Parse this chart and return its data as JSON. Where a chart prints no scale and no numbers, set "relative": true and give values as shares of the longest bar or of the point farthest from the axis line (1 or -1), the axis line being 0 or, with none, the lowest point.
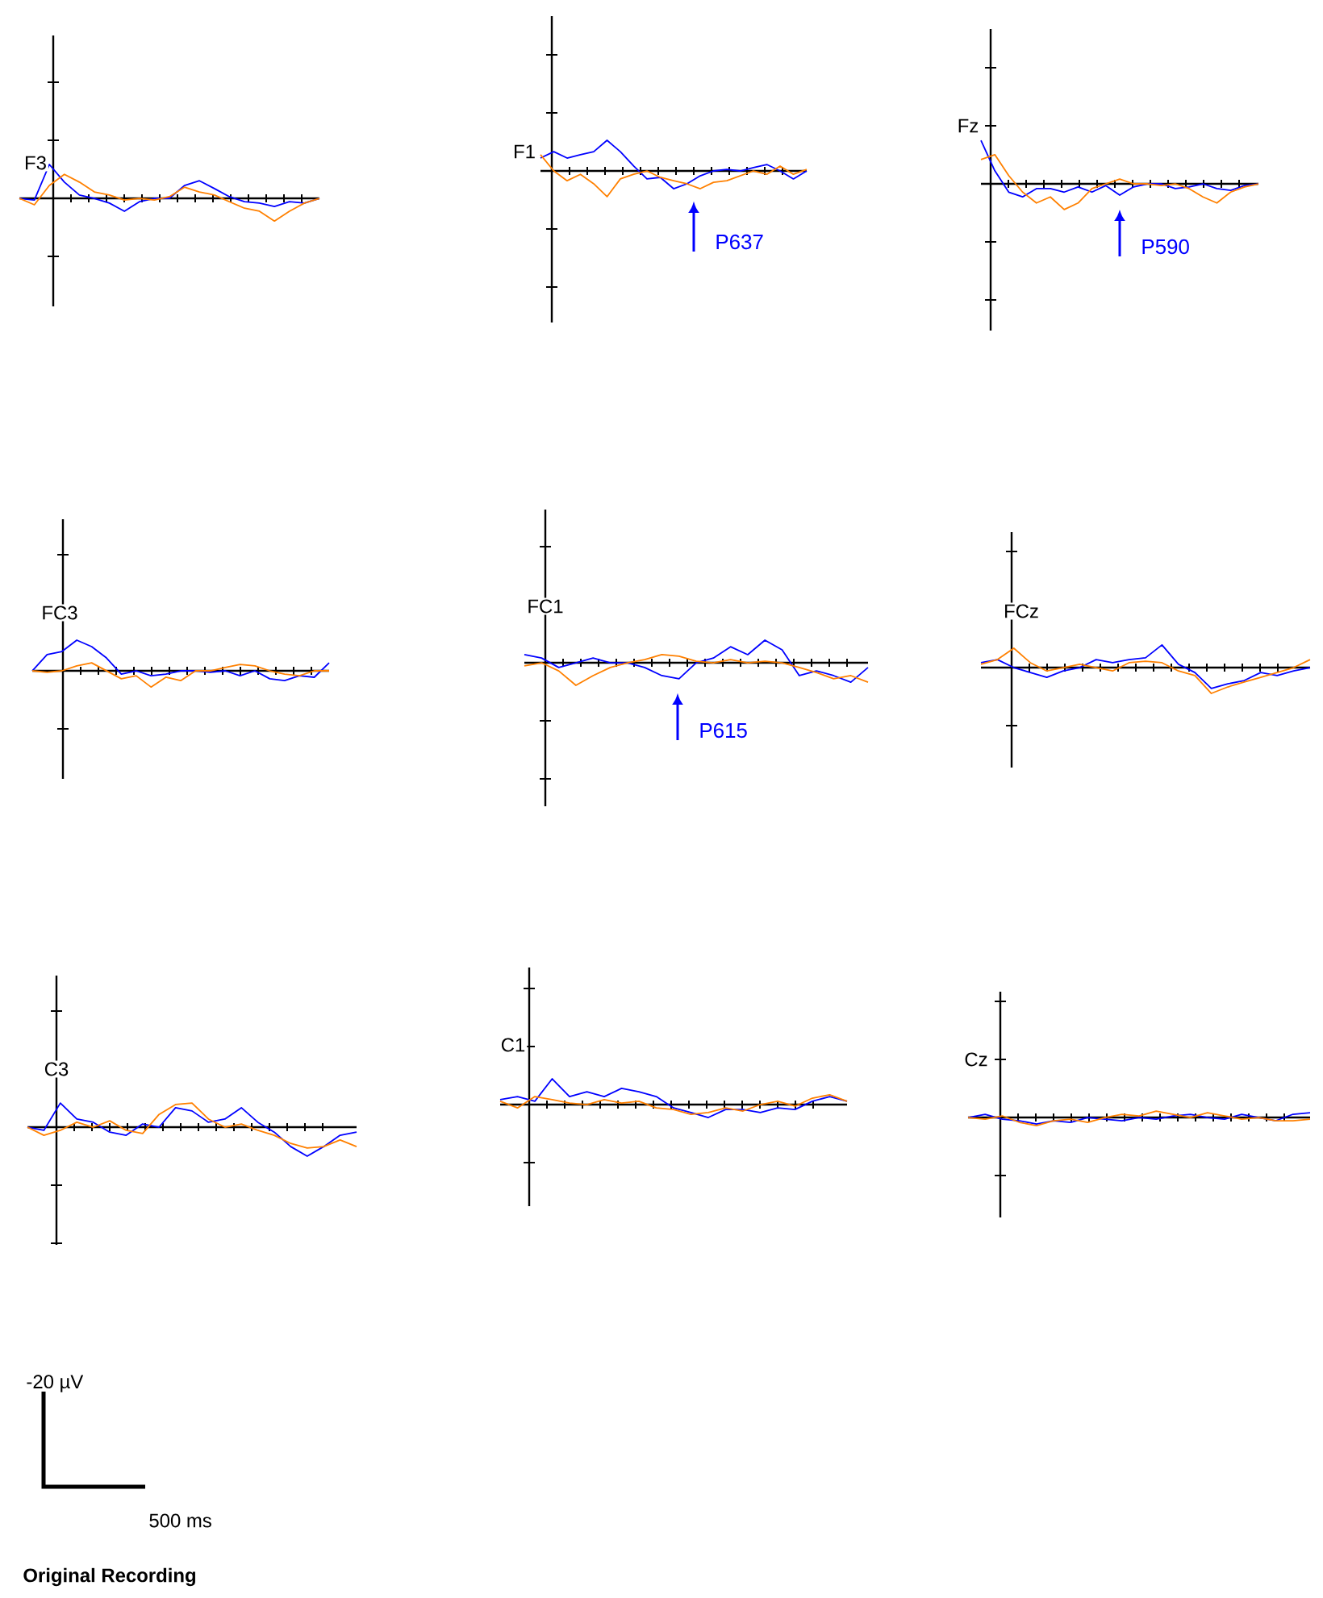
{
  "chart_data": [
    {
      "type": "line",
      "title": "F3",
      "relative": true,
      "categories": [
        null,
        null,
        null,
        null,
        null,
        null,
        null,
        null,
        null,
        null,
        null,
        null,
        null,
        null,
        null,
        null,
        null,
        null,
        null,
        null,
        null
      ],
      "series": [
        {
          "color": "#0000ff",
          "values": [
            0,
            -0.05,
            1,
            0.48,
            0.1,
            0,
            -0.14,
            -0.38,
            -0.1,
            0,
            0,
            0.38,
            0.52,
            0.29,
            0.05,
            -0.1,
            -0.14,
            -0.24,
            -0.1,
            -0.14,
            0
          ]
        },
        {
          "color": "#ff8000",
          "values": [
            0,
            -0.19,
            0.38,
            0.71,
            0.48,
            0.19,
            0.1,
            -0.05,
            0,
            -0.05,
            0.05,
            0.33,
            0.19,
            0.1,
            -0.1,
            -0.29,
            -0.38,
            -0.67,
            -0.38,
            -0.14,
            0
          ]
        }
      ]
    },
    {
      "type": "line",
      "title": "F1",
      "relative": true,
      "categories": [
        null,
        null,
        null,
        null,
        null,
        null,
        null,
        null,
        null,
        null,
        null,
        null,
        null,
        null,
        null,
        null,
        null,
        null,
        null,
        null,
        null
      ],
      "annotations": [
        "P637"
      ],
      "series": [
        {
          "color": "#0000ff",
          "values": [
            0.42,
            0.63,
            0.42,
            0.53,
            0.63,
            1,
            0.63,
            0.16,
            -0.26,
            -0.21,
            -0.58,
            -0.42,
            -0.16,
            0,
            0.05,
            0,
            0.11,
            0.21,
            0,
            -0.26,
            0
          ]
        },
        {
          "color": "#ff8000",
          "values": [
            0.53,
            0,
            -0.32,
            -0.11,
            -0.42,
            -0.84,
            -0.26,
            -0.11,
            0,
            -0.21,
            -0.32,
            -0.42,
            -0.58,
            -0.37,
            -0.32,
            -0.16,
            0,
            -0.11,
            0.16,
            -0.11,
            0.05
          ]
        }
      ]
    },
    {
      "type": "line",
      "title": "Fz",
      "relative": true,
      "categories": [
        null,
        null,
        null,
        null,
        null,
        null,
        null,
        null,
        null,
        null,
        null,
        null,
        null,
        null,
        null,
        null,
        null,
        null,
        null,
        null,
        null
      ],
      "annotations": [
        "P590"
      ],
      "series": [
        {
          "color": "#0000ff",
          "values": [
            1,
            0.3,
            -0.19,
            -0.3,
            -0.11,
            -0.11,
            -0.19,
            -0.07,
            -0.19,
            -0.04,
            -0.26,
            -0.07,
            0,
            0,
            -0.11,
            -0.07,
            0,
            -0.11,
            -0.15,
            -0.04,
            0
          ]
        },
        {
          "color": "#ff8000",
          "values": [
            0.56,
            0.67,
            0.19,
            -0.19,
            -0.44,
            -0.3,
            -0.59,
            -0.44,
            -0.11,
            0,
            0.11,
            0,
            0,
            -0.04,
            0,
            -0.11,
            -0.3,
            -0.44,
            -0.19,
            -0.07,
            0
          ]
        }
      ]
    },
    {
      "type": "line",
      "title": "FC3",
      "relative": true,
      "categories": [
        null,
        null,
        null,
        null,
        null,
        null,
        null,
        null,
        null,
        null,
        null,
        null,
        null,
        null,
        null,
        null,
        null,
        null,
        null,
        null,
        null
      ],
      "series": [
        {
          "color": "#0000ff",
          "values": [
            0,
            0.53,
            0.63,
            1,
            0.79,
            0.42,
            -0.11,
            0,
            -0.16,
            -0.11,
            0,
            0,
            -0.05,
            0,
            -0.16,
            0,
            -0.26,
            -0.32,
            -0.16,
            -0.21,
            0.26
          ]
        },
        {
          "color": "#ff8000",
          "values": [
            0,
            -0.05,
            0,
            0.16,
            0.26,
            0,
            -0.26,
            -0.16,
            -0.53,
            -0.21,
            -0.32,
            0,
            0,
            0.11,
            0.21,
            0.16,
            0,
            -0.11,
            -0.16,
            0,
            0
          ]
        }
      ]
    },
    {
      "type": "line",
      "title": "FC1",
      "relative": true,
      "categories": [
        null,
        null,
        null,
        null,
        null,
        null,
        null,
        null,
        null,
        null,
        null,
        null,
        null,
        null,
        null,
        null,
        null,
        null,
        null,
        null,
        null
      ],
      "annotations": [
        "P615"
      ],
      "series": [
        {
          "color": "#0000ff",
          "values": [
            0.36,
            0.21,
            -0.21,
            0,
            0.21,
            0,
            0,
            -0.21,
            -0.57,
            -0.71,
            0,
            0.21,
            0.71,
            0.36,
            1,
            0.57,
            -0.57,
            -0.36,
            -0.57,
            -0.86,
            -0.21
          ]
        },
        {
          "color": "#ff8000",
          "values": [
            -0.14,
            0,
            -0.36,
            -1,
            -0.57,
            -0.21,
            0,
            0.14,
            0.36,
            0.29,
            0.07,
            0,
            0.14,
            0,
            0.07,
            0,
            -0.21,
            -0.43,
            -0.71,
            -0.57,
            -0.86
          ]
        }
      ]
    },
    {
      "type": "line",
      "title": "FCz",
      "relative": true,
      "categories": [
        null,
        null,
        null,
        null,
        null,
        null,
        null,
        null,
        null,
        null,
        null,
        null,
        null,
        null,
        null,
        null,
        null,
        null,
        null,
        null,
        null
      ],
      "series": [
        {
          "color": "#0000ff",
          "values": [
            0.19,
            0.31,
            0,
            -0.19,
            -0.38,
            -0.13,
            0,
            0.31,
            0.19,
            0.31,
            0.38,
            0.88,
            0.13,
            -0.19,
            -0.81,
            -0.63,
            -0.5,
            -0.19,
            -0.31,
            -0.13,
            0
          ]
        },
        {
          "color": "#ff8000",
          "values": [
            0.13,
            0.31,
            0.75,
            0.19,
            -0.13,
            0,
            0.13,
            0,
            -0.13,
            0.19,
            0.25,
            0.19,
            -0.13,
            -0.31,
            -1,
            -0.75,
            -0.56,
            -0.38,
            -0.19,
            0,
            0.31
          ]
        }
      ]
    },
    {
      "type": "line",
      "title": "C3",
      "relative": true,
      "categories": [
        null,
        null,
        null,
        null,
        null,
        null,
        null,
        null,
        null,
        null,
        null,
        null,
        null,
        null,
        null,
        null,
        null,
        null,
        null,
        null,
        null
      ],
      "series": [
        {
          "color": "#0000ff",
          "values": [
            0,
            -0.11,
            0.83,
            0.28,
            0.17,
            -0.17,
            -0.28,
            0.11,
            0,
            0.67,
            0.56,
            0.17,
            0.28,
            0.67,
            0.17,
            -0.17,
            -0.67,
            -1,
            -0.67,
            -0.28,
            -0.17
          ]
        },
        {
          "color": "#ff8000",
          "values": [
            0,
            -0.28,
            -0.11,
            0.17,
            0,
            0.22,
            -0.11,
            -0.22,
            0.44,
            0.78,
            0.83,
            0.28,
            0,
            0.11,
            -0.11,
            -0.28,
            -0.56,
            -0.72,
            -0.67,
            -0.44,
            -0.67
          ]
        }
      ]
    },
    {
      "type": "line",
      "title": "C1",
      "relative": true,
      "categories": [
        null,
        null,
        null,
        null,
        null,
        null,
        null,
        null,
        null,
        null,
        null,
        null,
        null,
        null,
        null,
        null,
        null,
        null,
        null,
        null,
        null
      ],
      "series": [
        {
          "color": "#0000ff",
          "values": [
            0.19,
            0.31,
            0.13,
            1,
            0.31,
            0.5,
            0.31,
            0.63,
            0.5,
            0.31,
            -0.13,
            -0.31,
            -0.5,
            -0.19,
            -0.19,
            -0.31,
            -0.13,
            -0.19,
            0.13,
            0.31,
            0.13
          ]
        },
        {
          "color": "#ff8000",
          "values": [
            0.13,
            -0.13,
            0.31,
            0.19,
            0.06,
            0,
            0.19,
            0.06,
            0.13,
            -0.13,
            -0.19,
            -0.38,
            -0.31,
            -0.13,
            -0.25,
            0,
            0.13,
            -0.06,
            0.25,
            0.38,
            0.13
          ]
        }
      ]
    },
    {
      "type": "line",
      "title": "Cz",
      "relative": true,
      "categories": [
        null,
        null,
        null,
        null,
        null,
        null,
        null,
        null,
        null,
        null,
        null,
        null,
        null,
        null,
        null,
        null,
        null,
        null,
        null,
        null,
        null
      ],
      "series": [
        {
          "color": "#0000ff",
          "values": [
            0,
            0.4,
            -0.2,
            -0.4,
            -0.8,
            -0.4,
            -0.6,
            0,
            -0.2,
            -0.4,
            0,
            -0.2,
            0.2,
            0.4,
            0,
            -0.2,
            0.4,
            0,
            -0.4,
            0.4,
            0.6
          ]
        },
        {
          "color": "#ff8000",
          "values": [
            0,
            -0.2,
            0.2,
            -0.6,
            -1,
            -0.4,
            -0.2,
            -0.6,
            0,
            0.4,
            0.2,
            0.8,
            0.4,
            0,
            0.6,
            0.2,
            -0.2,
            0,
            -0.4,
            -0.4,
            -0.2
          ]
        }
      ]
    },
    {
      "type": "other",
      "title": "Original Recording",
      "annotations": [
        "-20 µV",
        "500 ms"
      ]
    }
  ]
}
